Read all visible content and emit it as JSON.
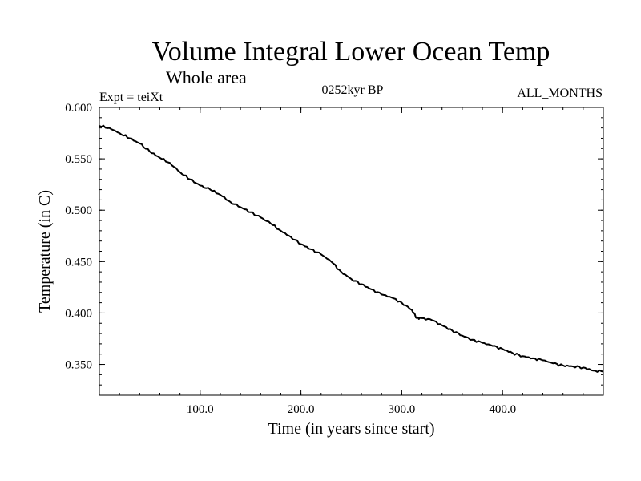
{
  "header": {
    "title": "Volume Integral Lower Ocean Temp",
    "subtitle": "Whole area",
    "expt_label": "Expt = teiXt",
    "period_label": "0252kyr BP",
    "months_label": "ALL_MONTHS"
  },
  "chart_data": {
    "type": "line",
    "title": "Volume Integral Lower Ocean Temp",
    "subtitle": "Whole area",
    "xlabel": "Time (in years since start)",
    "ylabel": "Temperature (in C)",
    "xlim": [
      0,
      500
    ],
    "ylim": [
      0.32,
      0.6
    ],
    "xticks": [
      100,
      200,
      300,
      400
    ],
    "xtick_labels": [
      "100.0",
      "200.0",
      "300.0",
      "400.0"
    ],
    "yticks": [
      0.35,
      0.4,
      0.45,
      0.5,
      0.55,
      0.6
    ],
    "ytick_labels": [
      "0.350",
      "0.400",
      "0.450",
      "0.500",
      "0.550",
      "0.600"
    ],
    "grid": false,
    "series": [
      {
        "x": [
          0,
          10,
          20,
          30,
          40,
          50,
          60,
          70,
          80,
          90,
          100,
          110,
          120,
          130,
          140,
          150,
          160,
          170,
          180,
          190,
          200,
          210,
          220,
          230,
          240,
          250,
          260,
          270,
          280,
          290,
          300,
          310,
          315,
          320,
          330,
          340,
          350,
          360,
          370,
          380,
          390,
          400,
          410,
          420,
          430,
          440,
          450,
          460,
          470,
          480,
          490,
          500
        ],
        "y": [
          0.582,
          0.58,
          0.575,
          0.57,
          0.565,
          0.557,
          0.551,
          0.546,
          0.537,
          0.53,
          0.524,
          0.52,
          0.515,
          0.508,
          0.503,
          0.498,
          0.493,
          0.487,
          0.48,
          0.474,
          0.467,
          0.462,
          0.457,
          0.45,
          0.44,
          0.433,
          0.428,
          0.423,
          0.418,
          0.415,
          0.41,
          0.403,
          0.395,
          0.395,
          0.393,
          0.388,
          0.383,
          0.378,
          0.374,
          0.371,
          0.368,
          0.365,
          0.361,
          0.358,
          0.356,
          0.354,
          0.351,
          0.349,
          0.348,
          0.347,
          0.344,
          0.343
        ]
      }
    ]
  }
}
